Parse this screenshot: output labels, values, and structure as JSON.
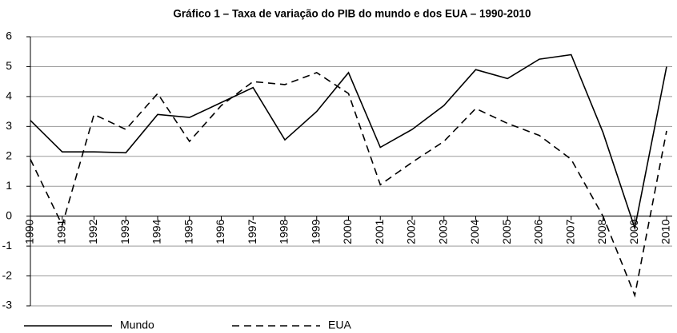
{
  "chart_data": {
    "type": "line",
    "title": "Gráfico 1 – Taxa de variação do PIB do mundo e dos EUA – 1990-2010",
    "categories": [
      "1990",
      "1991",
      "1992",
      "1993",
      "1994",
      "1995",
      "1996",
      "1997",
      "1998",
      "1999",
      "2000",
      "2001",
      "2002",
      "2003",
      "2004",
      "2005",
      "2006",
      "2007",
      "2008",
      "2009",
      "2010"
    ],
    "series": [
      {
        "name": "Mundo",
        "color": "#000000",
        "line_style": "solid",
        "values": [
          3.2,
          2.15,
          2.15,
          2.12,
          3.4,
          3.3,
          3.8,
          4.3,
          2.55,
          3.5,
          4.8,
          2.3,
          2.9,
          3.7,
          4.9,
          4.6,
          5.25,
          5.4,
          2.8,
          -0.4,
          5.0
        ]
      },
      {
        "name": "EUA",
        "color": "#000000",
        "line_style": "dashed",
        "values": [
          1.9,
          -0.3,
          3.4,
          2.9,
          4.1,
          2.5,
          3.7,
          4.5,
          4.4,
          4.8,
          4.1,
          1.05,
          1.8,
          2.5,
          3.6,
          3.1,
          2.7,
          1.9,
          0.0,
          -2.65,
          2.85
        ]
      }
    ],
    "ylim": [
      -3,
      6
    ],
    "yticks": [
      -3,
      -2,
      -1,
      0,
      1,
      2,
      3,
      4,
      5,
      6
    ],
    "grid": true,
    "legend": "bottom"
  }
}
